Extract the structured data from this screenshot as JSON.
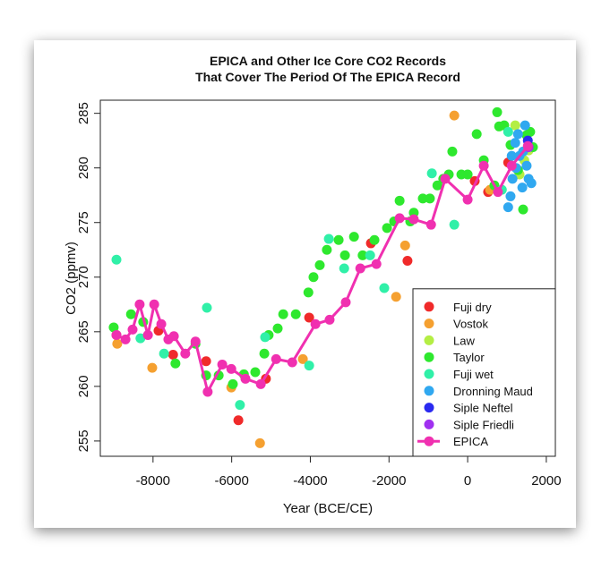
{
  "chart_data": {
    "type": "scatter",
    "title": [
      "EPICA and Other Ice Core CO2 Records",
      "That Cover The Period Of The EPICA Record"
    ],
    "x_label": "Year (BCE/CE)",
    "y_label": "CO2 (ppmv)",
    "xlim": [
      -9340,
      2230
    ],
    "ylim": [
      253.6,
      286.2
    ],
    "xticks": [
      -8000,
      -6000,
      -4000,
      -2000,
      0,
      2000
    ],
    "yticks": [
      255,
      260,
      265,
      270,
      275,
      280,
      285
    ],
    "legend": "bottom-right",
    "series": [
      {
        "name": "Fuji dry",
        "color": "#f02a2a",
        "style": "points",
        "x": [
          -8930,
          -7860,
          -7490,
          -6650,
          -5830,
          -5130,
          -4030,
          -2460,
          -1530,
          180,
          520,
          1030,
          1550
        ],
        "values": [
          264.7,
          265.1,
          262.9,
          262.3,
          256.9,
          260.7,
          266.3,
          273.1,
          271.5,
          278.8,
          277.8,
          280.5,
          282.0
        ]
      },
      {
        "name": "Vostok",
        "color": "#f5a030",
        "style": "points",
        "x": [
          -8910,
          -8020,
          -6010,
          -5280,
          -4190,
          -1820,
          -1590,
          -340,
          570
        ],
        "values": [
          263.9,
          261.7,
          259.9,
          254.8,
          262.5,
          268.2,
          272.9,
          284.8,
          278.0
        ]
      },
      {
        "name": "Law",
        "color": "#b4ee44",
        "style": "points",
        "x": [
          1210,
          1440,
          1320,
          1550
        ],
        "values": [
          283.9,
          280.7,
          279.4,
          281.6
        ]
      },
      {
        "name": "Taylor",
        "color": "#2ee82e",
        "style": "points",
        "x": [
          -9000,
          -8560,
          -8250,
          -7430,
          -6920,
          -6650,
          -6330,
          -5970,
          -5690,
          -5400,
          -5170,
          -5060,
          -4830,
          -4690,
          -4370,
          -4050,
          -3920,
          -3760,
          -3580,
          -3280,
          -3120,
          -2890,
          -2670,
          -2370,
          -2050,
          -1870,
          -1730,
          -1460,
          -1370,
          -1140,
          -960,
          -770,
          -620,
          -480,
          -390,
          -160,
          0,
          230,
          410,
          680,
          800,
          930,
          1090,
          1280,
          1410,
          1590,
          1660,
          1500,
          750
        ],
        "values": [
          265.4,
          266.6,
          265.9,
          262.1,
          263.9,
          261.0,
          261.0,
          260.2,
          261.1,
          261.3,
          263.0,
          264.7,
          265.3,
          266.6,
          266.6,
          268.6,
          270.0,
          271.1,
          272.5,
          273.4,
          272.0,
          273.7,
          272.0,
          273.4,
          274.5,
          275.1,
          277.0,
          275.1,
          275.9,
          277.2,
          277.2,
          278.4,
          279.0,
          279.4,
          281.5,
          279.4,
          279.4,
          283.1,
          280.7,
          278.4,
          283.8,
          283.9,
          282.1,
          279.8,
          276.2,
          283.3,
          281.9,
          283.0,
          285.1
        ]
      },
      {
        "name": "Fuji wet",
        "color": "#30f0a8",
        "style": "points",
        "x": [
          -8930,
          -8320,
          -7720,
          -6630,
          -5790,
          -5150,
          -4030,
          -3530,
          -3140,
          -2480,
          -2120,
          -910,
          -340,
          870,
          1030
        ],
        "values": [
          271.6,
          264.4,
          263.0,
          267.2,
          258.3,
          264.5,
          261.9,
          273.5,
          270.8,
          272.0,
          269.0,
          279.5,
          274.8,
          278.0,
          283.3
        ]
      },
      {
        "name": "Dronning Maud",
        "color": "#30a8f0",
        "style": "points",
        "x": [
          1030,
          1090,
          1140,
          1210,
          1280,
          1320,
          1390,
          1460,
          1500,
          1550,
          1620,
          1120,
          1230,
          1410
        ],
        "values": [
          276.4,
          277.4,
          279.0,
          282.3,
          283.1,
          281.1,
          278.2,
          283.9,
          280.2,
          279.0,
          278.6,
          281.1,
          280.0,
          281.5
        ]
      },
      {
        "name": "Siple Neftel",
        "color": "#2a2af0",
        "style": "points",
        "x": [
          1530
        ],
        "values": [
          282.5
        ]
      },
      {
        "name": "Siple Friedli",
        "color": "#a030f0",
        "style": "points",
        "x": [
          1550
        ],
        "values": [
          281.9
        ]
      },
      {
        "name": "EPICA",
        "color": "#f030b0",
        "style": "line-points",
        "x": [
          -8930,
          -8700,
          -8520,
          -8340,
          -8130,
          -7970,
          -7790,
          -7610,
          -7470,
          -7180,
          -6920,
          -6610,
          -6240,
          -6010,
          -5650,
          -5260,
          -4870,
          -4460,
          -3870,
          -3510,
          -3100,
          -2730,
          -2320,
          -1730,
          -1370,
          -930,
          -570,
          0,
          410,
          770,
          1120,
          1530
        ],
        "values": [
          264.7,
          264.3,
          265.2,
          267.5,
          264.7,
          267.5,
          265.7,
          264.3,
          264.6,
          263.0,
          264.1,
          259.5,
          262.0,
          261.6,
          260.7,
          260.2,
          262.5,
          262.2,
          265.7,
          266.1,
          267.7,
          270.8,
          271.2,
          275.4,
          275.3,
          274.8,
          279.0,
          277.1,
          280.2,
          277.8,
          280.2,
          282.0
        ]
      }
    ]
  }
}
